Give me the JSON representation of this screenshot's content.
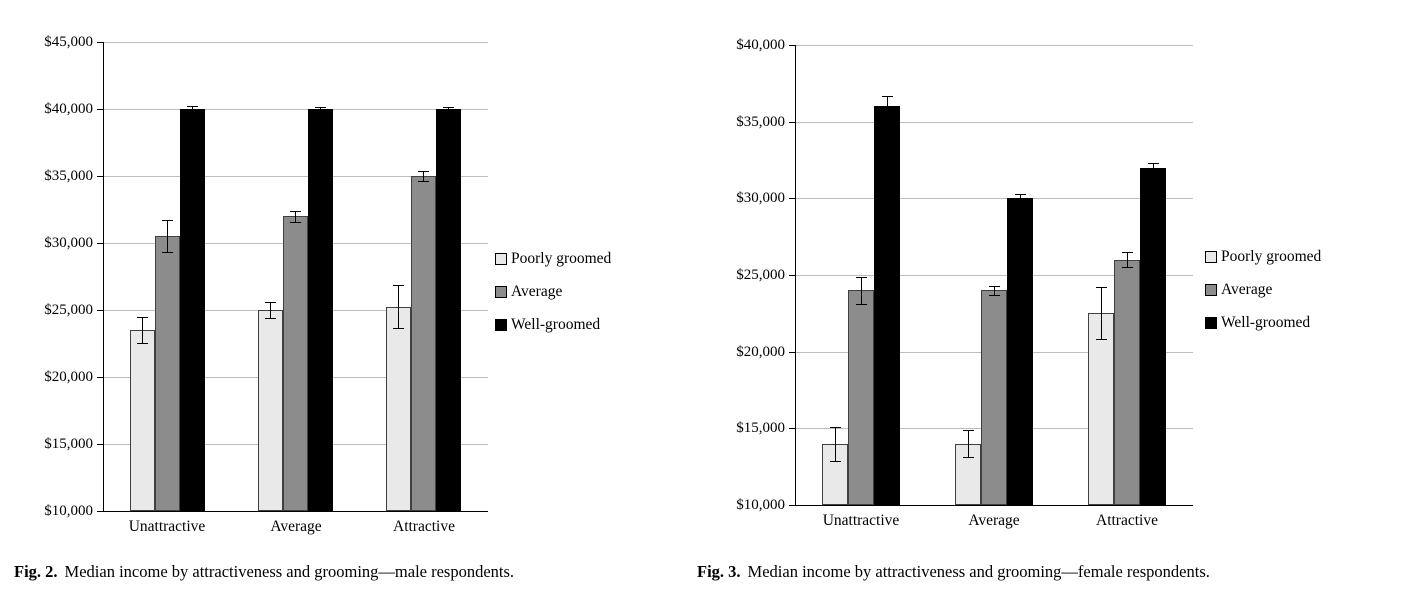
{
  "palette": {
    "background": "#ffffff",
    "axis": "#000000",
    "grid": "#bdbdbd",
    "error_bar": "#000000",
    "bar_border": "#404040",
    "text": "#000000"
  },
  "chart_data": [
    {
      "type": "bar",
      "figure_label": "Fig. 2.",
      "caption": "Median income by attractiveness and grooming—male respondents.",
      "xlabel": "",
      "ylabel": "",
      "categories": [
        "Unattractive",
        "Average",
        "Attractive"
      ],
      "series": [
        {
          "name": "Poorly groomed",
          "color": "#e9e9e9",
          "values": [
            23500,
            25000,
            25250
          ],
          "errors": [
            1000,
            600,
            1600
          ]
        },
        {
          "name": "Average",
          "color": "#8c8c8c",
          "values": [
            30500,
            32000,
            35000
          ],
          "errors": [
            1200,
            400,
            400
          ]
        },
        {
          "name": "Well-groomed",
          "color": "#000000",
          "values": [
            40000,
            40000,
            40000
          ],
          "errors": [
            200,
            150,
            150
          ]
        }
      ],
      "ylim": [
        10000,
        45000
      ],
      "ytick_step": 5000,
      "ytick_labels": [
        "$10,000",
        "$15,000",
        "$20,000",
        "$25,000",
        "$30,000",
        "$35,000",
        "$40,000",
        "$45,000"
      ],
      "legend_position": "right",
      "grid": true
    },
    {
      "type": "bar",
      "figure_label": "Fig. 3.",
      "caption": "Median income by attractiveness and grooming—female respondents.",
      "xlabel": "",
      "ylabel": "",
      "categories": [
        "Unattractive",
        "Average",
        "Attractive"
      ],
      "series": [
        {
          "name": "Poorly groomed",
          "color": "#e9e9e9",
          "values": [
            14000,
            14000,
            22500
          ],
          "errors": [
            1100,
            900,
            1700
          ]
        },
        {
          "name": "Average",
          "color": "#8c8c8c",
          "values": [
            24000,
            24000,
            26000
          ],
          "errors": [
            900,
            300,
            500
          ]
        },
        {
          "name": "Well-groomed",
          "color": "#000000",
          "values": [
            36000,
            30000,
            32000
          ],
          "errors": [
            700,
            250,
            300
          ]
        }
      ],
      "ylim": [
        10000,
        40000
      ],
      "ytick_step": 5000,
      "ytick_labels": [
        "$10,000",
        "$15,000",
        "$20,000",
        "$25,000",
        "$30,000",
        "$35,000",
        "$40,000"
      ],
      "legend_position": "right",
      "grid": true
    }
  ]
}
